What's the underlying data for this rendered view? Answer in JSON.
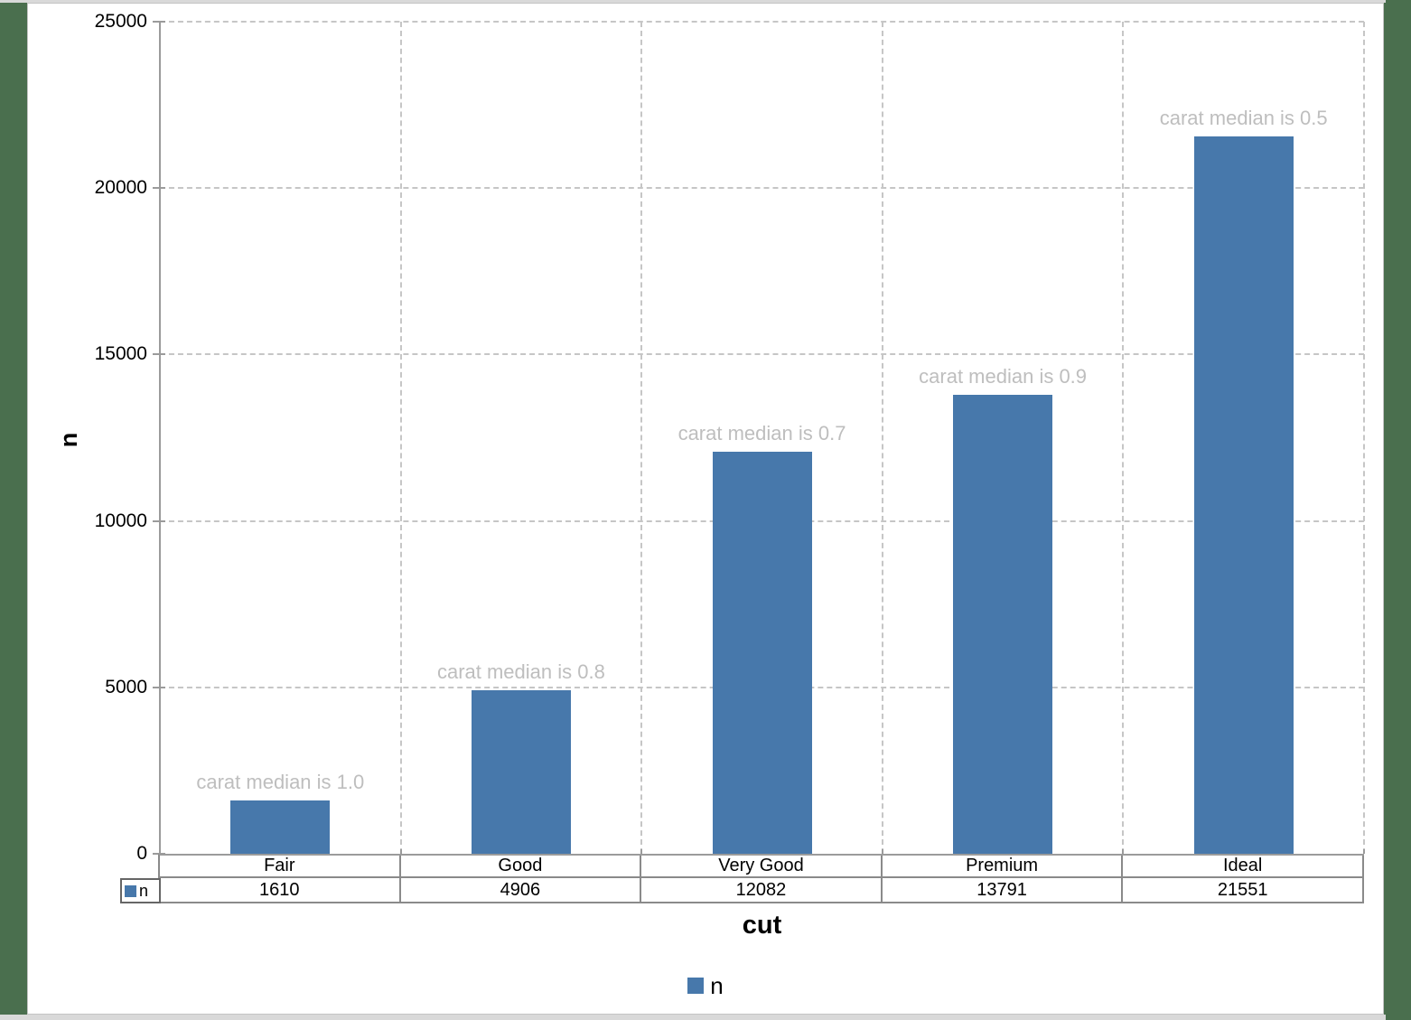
{
  "chart_data": {
    "type": "bar",
    "title": "",
    "xlabel": "cut",
    "ylabel": "n",
    "categories": [
      "Fair",
      "Good",
      "Very Good",
      "Premium",
      "Ideal"
    ],
    "series": [
      {
        "name": "n",
        "values": [
          1610,
          4906,
          12082,
          13791,
          21551
        ]
      }
    ],
    "annotations": [
      "carat median is 1.0",
      "carat median is 0.8",
      "carat median is 0.7",
      "carat median is 0.9",
      "carat median is 0.5"
    ],
    "ylim": [
      0,
      25000
    ],
    "yticks": [
      0,
      5000,
      10000,
      15000,
      20000,
      25000
    ],
    "grid": true,
    "legend": {
      "position": "bottom",
      "entries": [
        "n"
      ]
    },
    "bar_color": "#4778AB",
    "data_table": {
      "row_label": "n",
      "header": [
        "Fair",
        "Good",
        "Very Good",
        "Premium",
        "Ideal"
      ],
      "values": [
        "1610",
        "4906",
        "12082",
        "13791",
        "21551"
      ]
    }
  },
  "colors": {
    "background": "#4A6F4E",
    "slide": "#FFFFFF",
    "gridline": "#C6C6C6",
    "axis": "#9B9B9B",
    "table_border": "#8A8A8A",
    "annotation_text": "#BEBEBE",
    "bar": "#4778AB"
  }
}
